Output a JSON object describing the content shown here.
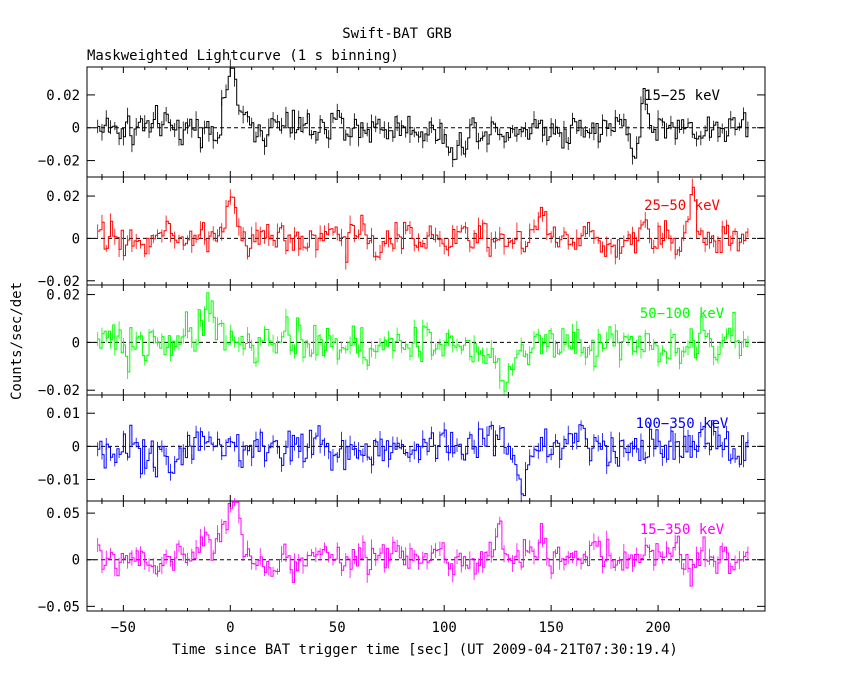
{
  "chart_data": {
    "type": "line",
    "title": "Swift-BAT GRB",
    "subtitle": "Maskweighted Lightcurve (1 s binning)",
    "xlabel": "Time since BAT trigger time [sec] (UT 2009-04-21T07:30:19.4)",
    "ylabel": "Counts/sec/det",
    "xlim": [
      -67,
      250
    ],
    "x_ticks": [
      -50,
      0,
      50,
      100,
      150,
      200
    ],
    "x_tick_labels": [
      "−50",
      "0",
      "50",
      "100",
      "150",
      "200"
    ],
    "binning_sec": 1,
    "time_range": [
      -62,
      242
    ],
    "panels": [
      {
        "name": "15-25 keV",
        "label": "15−25 keV",
        "color": "#000000",
        "ylim": [
          -0.03,
          0.037
        ],
        "y_ticks": [
          0.02,
          0,
          -0.02
        ],
        "y_tick_labels": [
          "0.02",
          "0",
          "−0.02"
        ],
        "noise": 0.0085,
        "features": [
          {
            "t": 0,
            "amp": 0.037,
            "width": 2.5
          },
          {
            "t": 104,
            "amp": -0.018,
            "width": 3
          },
          {
            "t": 188,
            "amp": -0.02,
            "width": 1.5
          },
          {
            "t": 193,
            "amp": 0.02,
            "width": 1.5
          }
        ]
      },
      {
        "name": "25-50 keV",
        "label": "25−50 keV",
        "color": "#ff0000",
        "ylim": [
          -0.022,
          0.029
        ],
        "y_ticks": [
          0.02,
          0,
          -0.02
        ],
        "y_tick_labels": [
          "0.02",
          "0",
          "−0.02"
        ],
        "noise": 0.0065,
        "features": [
          {
            "t": 0,
            "amp": 0.016,
            "width": 3
          },
          {
            "t": 145,
            "amp": 0.014,
            "width": 2
          },
          {
            "t": 216,
            "amp": 0.017,
            "width": 2
          }
        ]
      },
      {
        "name": "50-100 keV",
        "label": "50−100 keV",
        "color": "#00ff00",
        "ylim": [
          -0.022,
          0.024
        ],
        "y_ticks": [
          0.02,
          0,
          -0.02
        ],
        "y_tick_labels": [
          "0.02",
          "0",
          "−0.02"
        ],
        "noise": 0.0075,
        "features": [
          {
            "t": -10,
            "amp": 0.015,
            "width": 3
          },
          {
            "t": 128,
            "amp": -0.016,
            "width": 3
          }
        ]
      },
      {
        "name": "100-350 keV",
        "label": "100−350 keV",
        "color": "#0000ff",
        "ylim": [
          -0.0165,
          0.0155
        ],
        "y_ticks": [
          0.01,
          0,
          -0.01
        ],
        "y_tick_labels": [
          "0.01",
          "0",
          "−0.01"
        ],
        "noise": 0.0055,
        "features": [
          {
            "t": 136,
            "amp": -0.011,
            "width": 2
          }
        ]
      },
      {
        "name": "15-350 keV",
        "label": "15−350 keV",
        "color": "#ff00ff",
        "ylim": [
          -0.055,
          0.063
        ],
        "y_ticks": [
          0.05,
          0,
          -0.05
        ],
        "y_tick_labels": [
          "0.05",
          "0",
          "−0.05"
        ],
        "noise": 0.015,
        "features": [
          {
            "t": -5,
            "amp": 0.025,
            "width": 6
          },
          {
            "t": 1,
            "amp": 0.045,
            "width": 2.5
          },
          {
            "t": 125,
            "amp": 0.03,
            "width": 2.5
          },
          {
            "t": 145,
            "amp": 0.022,
            "width": 2
          }
        ]
      }
    ]
  }
}
